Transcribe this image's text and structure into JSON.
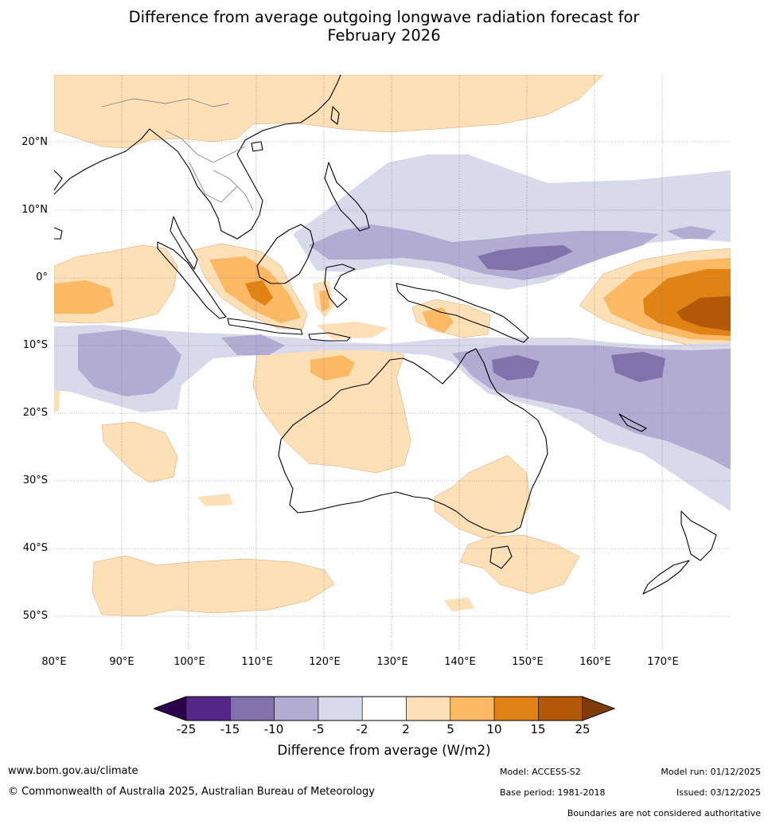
{
  "title_line1": "Difference from average outgoing longwave radiation forecast for",
  "title_line2": "February 2026",
  "lat_labels": [
    "20°N",
    "10°N",
    "0°",
    "10°S",
    "20°S",
    "30°S",
    "40°S",
    "50°S"
  ],
  "lon_labels": [
    "80°E",
    "90°E",
    "100°E",
    "110°E",
    "120°E",
    "130°E",
    "140°E",
    "150°E",
    "160°E",
    "170°E"
  ],
  "colorbar": {
    "ticks": [
      "-25",
      "-15",
      "-10",
      "-5",
      "-2",
      "2",
      "5",
      "10",
      "15",
      "25"
    ],
    "colors": {
      "lt_-25": "#2d004b",
      "-25_-15": "#542788",
      "-15_-10": "#8073ac",
      "-10_-5": "#b2abd2",
      "-5_-2": "#d8daeb",
      "-2_2": "#ffffff",
      "2_5": "#fee0b6",
      "5_10": "#fdb863",
      "10_15": "#e08214",
      "15_25": "#b35806",
      "gt_25": "#7f3b08"
    },
    "label": "Difference from average (W/m2)"
  },
  "footer": {
    "website": "www.bom.gov.au/climate",
    "copyright": "© Commonwealth of Australia 2025, Australian Bureau of Meteorology",
    "model": "Model: ACCESS-S2",
    "base_period": "Base period: 1981-2018",
    "model_run": "Model run: 01/12/2025",
    "issued": "Issued: 03/12/2025",
    "disclaimer": "Boundaries are not considered authoritative"
  }
}
